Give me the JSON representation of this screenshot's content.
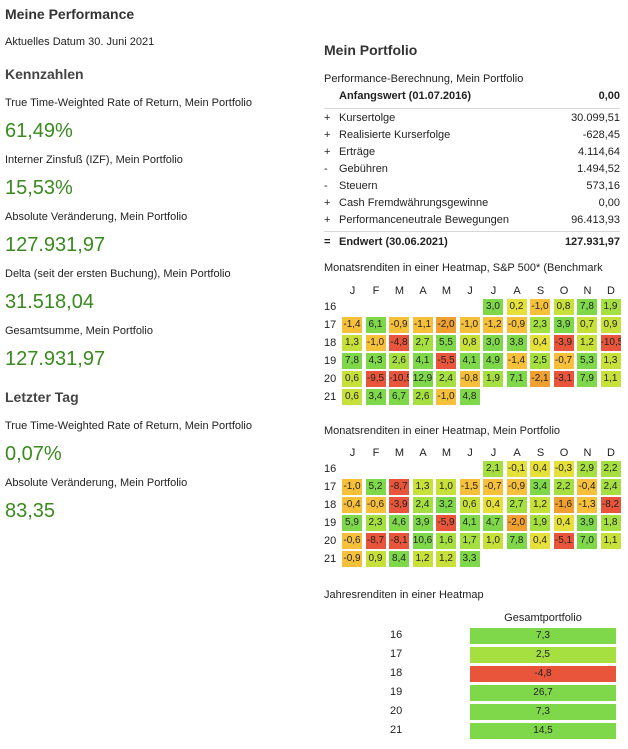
{
  "left": {
    "title": "Meine Performance",
    "date": "Aktuelles Datum 30. Juni 2021",
    "kennzahlen_title": "Kennzahlen",
    "kennzahlen": [
      {
        "label": "True Time-Weighted Rate of Return, Mein Portfolio",
        "value": "61,49%"
      },
      {
        "label": "Interner Zinsfuß (IZF), Mein Portfolio",
        "value": "15,53%"
      },
      {
        "label": "Absolute Veränderung, Mein Portfolio",
        "value": "127.931,97"
      },
      {
        "label": "Delta (seit der ersten Buchung), Mein Portfolio",
        "value": "31.518,04"
      },
      {
        "label": "Gesamtsumme, Mein Portfolio",
        "value": "127.931,97"
      }
    ],
    "letzter_tag_title": "Letzter Tag",
    "letzter_tag": [
      {
        "label": "True Time-Weighted Rate of Return, Mein Portfolio",
        "value": "0,07%"
      },
      {
        "label": "Absolute Veränderung, Mein Portfolio",
        "value": "83,35"
      }
    ]
  },
  "right": {
    "title": "Mein Portfolio",
    "calc_title": "Performance-Berechnung, Mein Portfolio",
    "start": {
      "label": "Anfangswert (01.07.2016)",
      "value": "0,00"
    },
    "rows": [
      {
        "sign": "+",
        "label": "Kursertolge",
        "value": "30.099,51"
      },
      {
        "sign": "+",
        "label": "Realisierte Kurserfolge",
        "value": "-628,45"
      },
      {
        "sign": "+",
        "label": "Erträge",
        "value": "4.114,64"
      },
      {
        "sign": "-",
        "label": "Gebühren",
        "value": "1.494,52"
      },
      {
        "sign": "-",
        "label": "Steuern",
        "value": "573,16"
      },
      {
        "sign": "+",
        "label": "Cash Fremdwährungsgewinne",
        "value": "0,00"
      },
      {
        "sign": "+",
        "label": "Performanceneutrale Bewegungen",
        "value": "96.413,93"
      }
    ],
    "end": {
      "sign": "=",
      "label": "Endwert (30.06.2021)",
      "value": "127.931,97"
    },
    "heatmap1_title": "Monatsrenditen in einer Heatmap, S&P 500* (Benchmark",
    "heatmap2_title": "Monatsrenditen in einer Heatmap, Mein Portfolio",
    "yearly_title": "Jahresrenditen in einer Heatmap",
    "yearly_header": "Gesamtportfolio",
    "months": [
      "J",
      "F",
      "M",
      "A",
      "M",
      "J",
      "J",
      "A",
      "S",
      "O",
      "N",
      "D"
    ],
    "years": [
      "16",
      "17",
      "18",
      "19",
      "20",
      "21"
    ],
    "heatmap1": [
      [
        null,
        null,
        null,
        null,
        null,
        null,
        "3,0",
        "0,2",
        "-1,0",
        "0,8",
        "7,8",
        "1,9"
      ],
      [
        "-1,4",
        "6,1",
        "-0,9",
        "-1,1",
        "-2,0",
        "-1,0",
        "-1,2",
        "-0,9",
        "2,3",
        "3,9",
        "0,7",
        "0,9"
      ],
      [
        "1,3",
        "-1,0",
        "-4,8",
        "2,7",
        "5,5",
        "0,8",
        "3,0",
        "3,8",
        "0,4",
        "-3,9",
        "1,2",
        "-10,5"
      ],
      [
        "7,8",
        "4,3",
        "2,6",
        "4,1",
        "-5,5",
        "4,1",
        "4,9",
        "-1,4",
        "2,5",
        "-0,7",
        "5,3",
        "1,3"
      ],
      [
        "0,6",
        "-9,5",
        "-10,5",
        "12,9",
        "2,4",
        "-0,8",
        "1,9",
        "7,1",
        "-2,1",
        "-3,1",
        "7,9",
        "1,1"
      ],
      [
        "0,6",
        "3,4",
        "6,7",
        "2,6",
        "-1,0",
        "4,8",
        null,
        null,
        null,
        null,
        null,
        null
      ]
    ],
    "heatmap2": [
      [
        null,
        null,
        null,
        null,
        null,
        null,
        "2,1",
        "-0,1",
        "0,4",
        "-0,3",
        "2,9",
        "2,2"
      ],
      [
        "-1,0",
        "5,2",
        "-8,7",
        "1,3",
        "1,0",
        "-1,5",
        "-0,7",
        "-0,9",
        "3,4",
        "2,2",
        "-0,4",
        "2,4"
      ],
      [
        "-0,4",
        "-0,6",
        "-3,9",
        "2,4",
        "3,2",
        "0,6",
        "0,4",
        "2,7",
        "1,2",
        "-1,6",
        "-1,3",
        "-8,2"
      ],
      [
        "5,9",
        "2,3",
        "4,6",
        "3,9",
        "-5,9",
        "4,1",
        "4,7",
        "-2,0",
        "1,9",
        "0,4",
        "3,9",
        "1,8"
      ],
      [
        "-0,6",
        "-8,7",
        "-8,1",
        "10,6",
        "1,6",
        "1,7",
        "1,0",
        "7,8",
        "0,4",
        "-5,1",
        "7,0",
        "1,1"
      ],
      [
        "-0,9",
        "0,9",
        "8,4",
        "1,2",
        "1,2",
        "3,3",
        null,
        null,
        null,
        null,
        null,
        null
      ]
    ],
    "yearly": [
      {
        "year": "16",
        "value": "7,3"
      },
      {
        "year": "17",
        "value": "2,5"
      },
      {
        "year": "18",
        "value": "-4,8"
      },
      {
        "year": "19",
        "value": "26,7"
      },
      {
        "year": "20",
        "value": "7,3"
      },
      {
        "year": "21",
        "value": "14,5"
      }
    ]
  }
}
